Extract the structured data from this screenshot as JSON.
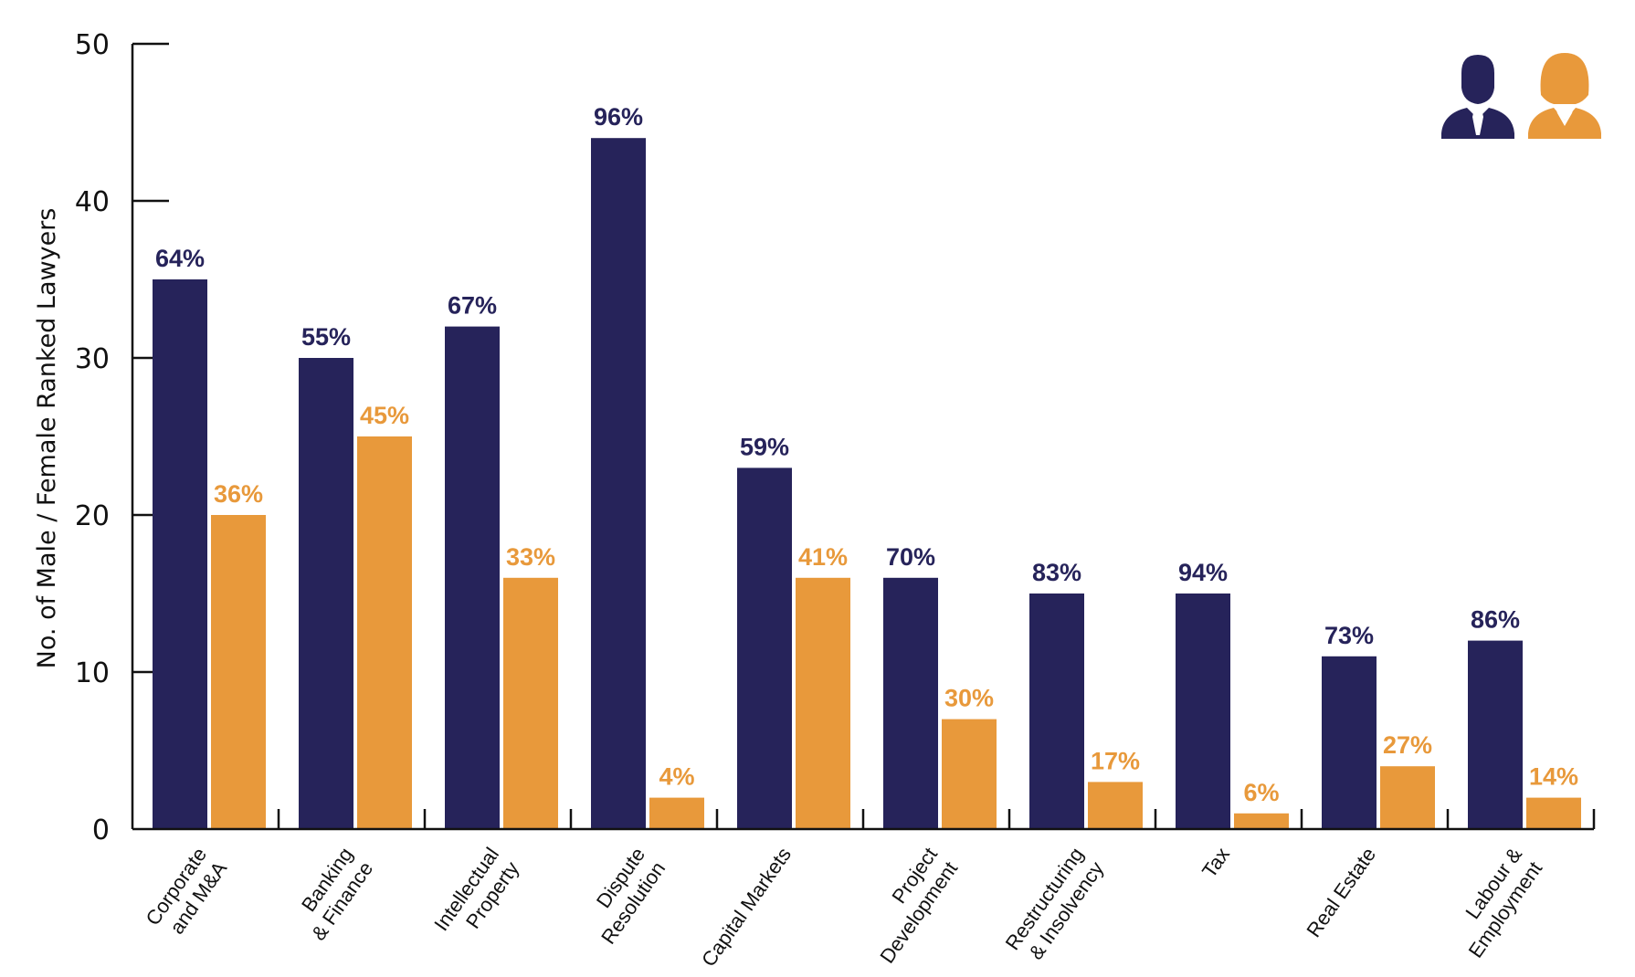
{
  "colors": {
    "male": "#26235a",
    "female": "#e8993b",
    "axis": "#111111"
  },
  "legend": {
    "male_icon": "male-person-icon",
    "female_icon": "female-person-icon"
  },
  "chart_data": {
    "type": "bar",
    "ylabel": "No. of Male / Female Ranked Lawyers",
    "ylim": [
      0,
      50
    ],
    "yticks": [
      0,
      10,
      20,
      30,
      40,
      50
    ],
    "legend_position": "top-right",
    "grid": false,
    "categories": [
      [
        "Corporate",
        "and M&A"
      ],
      [
        "Banking",
        "& Finance"
      ],
      [
        "Intellectual",
        "Property"
      ],
      [
        "Dispute",
        "Resolution"
      ],
      [
        "Capital Markets"
      ],
      [
        "Project",
        "Development"
      ],
      [
        "Restructuring",
        "& Insolvency"
      ],
      [
        "Tax"
      ],
      [
        "Real Estate"
      ],
      [
        "Labour &",
        "Employment"
      ]
    ],
    "series": [
      {
        "key": "male",
        "values": [
          35,
          30,
          32,
          44,
          23,
          16,
          15,
          15,
          11,
          12
        ],
        "labels": [
          "64%",
          "55%",
          "67%",
          "96%",
          "59%",
          "70%",
          "83%",
          "94%",
          "73%",
          "86%"
        ]
      },
      {
        "key": "female",
        "values": [
          20,
          25,
          16,
          2,
          16,
          7,
          3,
          1,
          4,
          2
        ],
        "labels": [
          "36%",
          "45%",
          "33%",
          "4%",
          "41%",
          "30%",
          "17%",
          "6%",
          "27%",
          "14%"
        ]
      }
    ]
  }
}
